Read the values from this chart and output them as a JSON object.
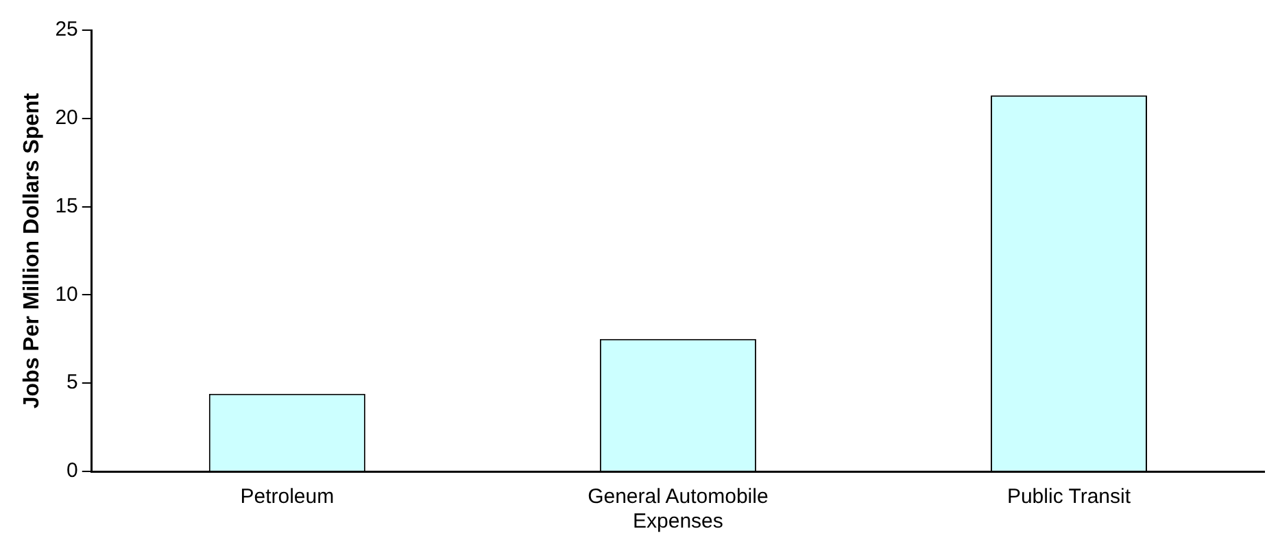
{
  "chart_data": {
    "type": "bar",
    "ylabel": "Jobs Per Million Dollars Spent",
    "categories": [
      "Petroleum",
      "General Automobile Expenses",
      "Public Transit"
    ],
    "values": [
      4.4,
      7.5,
      21.3
    ],
    "color": "#ccffff",
    "ylim": [
      0,
      25
    ],
    "yticks": [
      0,
      5,
      10,
      15,
      20,
      25
    ],
    "grid": false,
    "legend": false
  }
}
